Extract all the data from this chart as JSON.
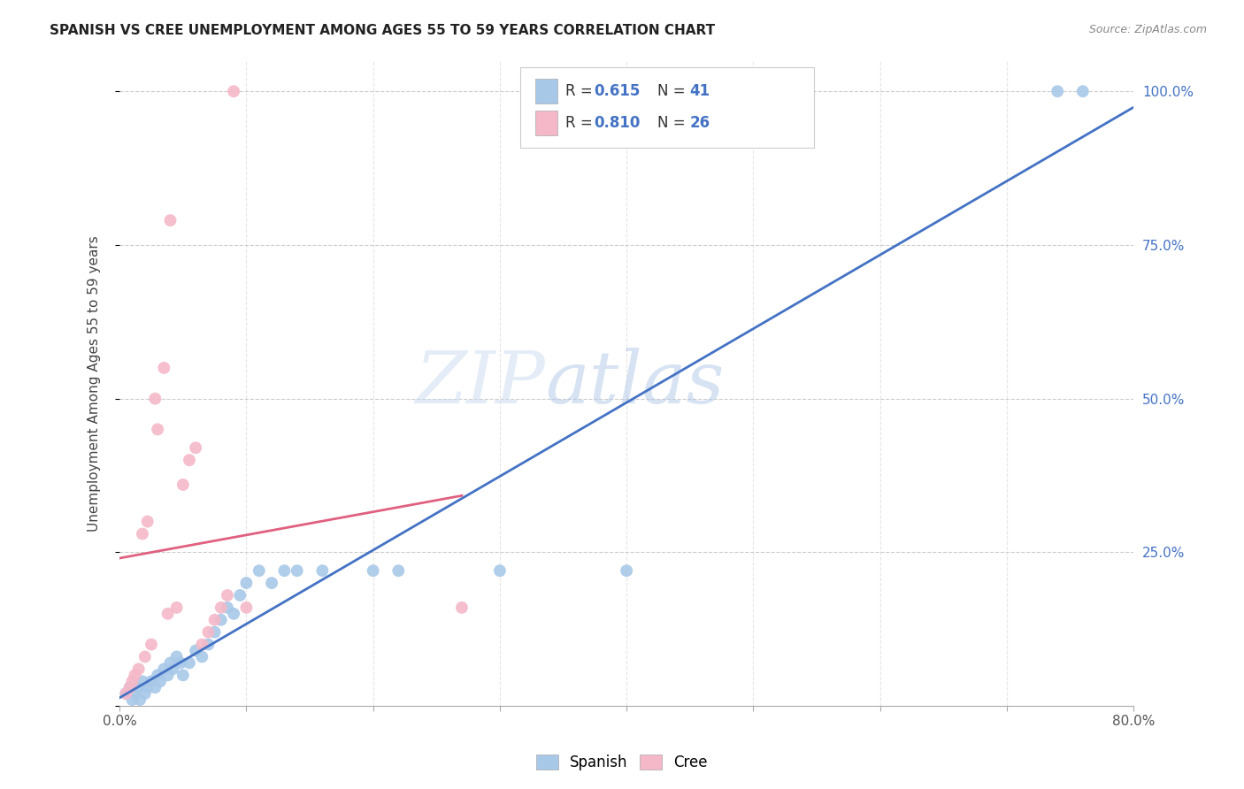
{
  "title": "SPANISH VS CREE UNEMPLOYMENT AMONG AGES 55 TO 59 YEARS CORRELATION CHART",
  "source": "Source: ZipAtlas.com",
  "ylabel": "Unemployment Among Ages 55 to 59 years",
  "watermark_zip": "ZIP",
  "watermark_atlas": "atlas",
  "xlim": [
    0.0,
    0.8
  ],
  "ylim": [
    0.0,
    1.05
  ],
  "xticks": [
    0.0,
    0.1,
    0.2,
    0.3,
    0.4,
    0.5,
    0.6,
    0.7,
    0.8
  ],
  "yticks": [
    0.0,
    0.25,
    0.5,
    0.75,
    1.0
  ],
  "legend_R_spanish": "0.615",
  "legend_N_spanish": "41",
  "legend_R_cree": "0.810",
  "legend_N_cree": "26",
  "spanish_color": "#a8c8e8",
  "cree_color": "#f4b8c8",
  "trend_spanish_color": "#4472c4",
  "trend_cree_color": "#e06080",
  "label_color": "#4472c4",
  "spanish_x": [
    0.005,
    0.008,
    0.01,
    0.012,
    0.014,
    0.016,
    0.018,
    0.02,
    0.022,
    0.025,
    0.028,
    0.03,
    0.032,
    0.035,
    0.038,
    0.04,
    0.042,
    0.045,
    0.048,
    0.05,
    0.055,
    0.06,
    0.065,
    0.07,
    0.075,
    0.08,
    0.085,
    0.09,
    0.095,
    0.1,
    0.11,
    0.12,
    0.13,
    0.14,
    0.16,
    0.2,
    0.22,
    0.3,
    0.4,
    0.74,
    0.76
  ],
  "spanish_y": [
    0.02,
    0.03,
    0.01,
    0.02,
    0.03,
    0.01,
    0.04,
    0.02,
    0.03,
    0.04,
    0.03,
    0.05,
    0.04,
    0.06,
    0.05,
    0.07,
    0.06,
    0.08,
    0.07,
    0.05,
    0.07,
    0.09,
    0.08,
    0.1,
    0.12,
    0.14,
    0.16,
    0.15,
    0.18,
    0.2,
    0.22,
    0.2,
    0.22,
    0.22,
    0.22,
    0.22,
    0.22,
    0.22,
    0.22,
    1.0,
    1.0
  ],
  "cree_x": [
    0.005,
    0.008,
    0.01,
    0.012,
    0.015,
    0.018,
    0.02,
    0.022,
    0.025,
    0.028,
    0.03,
    0.035,
    0.038,
    0.04,
    0.045,
    0.05,
    0.055,
    0.06,
    0.065,
    0.07,
    0.075,
    0.08,
    0.085,
    0.09,
    0.1,
    0.27
  ],
  "cree_y": [
    0.02,
    0.03,
    0.04,
    0.05,
    0.06,
    0.28,
    0.08,
    0.3,
    0.1,
    0.5,
    0.45,
    0.55,
    0.15,
    0.79,
    0.16,
    0.36,
    0.4,
    0.42,
    0.1,
    0.12,
    0.14,
    0.16,
    0.18,
    1.0,
    0.16,
    0.16
  ],
  "background_color": "#ffffff",
  "grid_color": "#cccccc"
}
